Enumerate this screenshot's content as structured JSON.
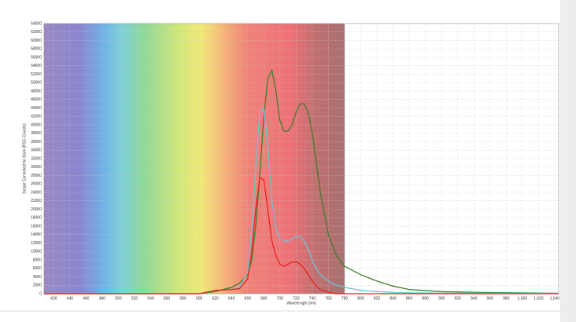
{
  "chart_data": {
    "type": "line",
    "x_label": "Wavelength [nm]",
    "y_label": "Scope Corrected for Dark (RSC-Counts)",
    "x": [
      408,
      600,
      620,
      640,
      650,
      660,
      665,
      670,
      675,
      680,
      685,
      690,
      695,
      700,
      705,
      710,
      715,
      720,
      725,
      730,
      735,
      740,
      745,
      750,
      760,
      770,
      780,
      800,
      820,
      840,
      860,
      900,
      950,
      1000,
      1045
    ],
    "series": [
      {
        "color": "#3f7d2c",
        "values": [
          0,
          0,
          500,
          1500,
          2500,
          4500,
          8000,
          16000,
          28000,
          42000,
          51000,
          53000,
          48000,
          41000,
          38500,
          38500,
          40000,
          43000,
          45000,
          45000,
          43000,
          38000,
          31000,
          24000,
          14000,
          9000,
          6500,
          4500,
          3000,
          1800,
          1000,
          500,
          300,
          200,
          100
        ]
      },
      {
        "color": "#6cc3d6",
        "values": [
          0,
          0,
          800,
          1000,
          1500,
          5000,
          15000,
          30000,
          43000,
          44000,
          35000,
          22000,
          15500,
          13000,
          12500,
          12500,
          13000,
          13500,
          13500,
          12500,
          10500,
          8000,
          6000,
          4500,
          3000,
          2000,
          1500,
          800,
          500,
          300,
          200,
          150,
          100,
          100,
          100
        ]
      },
      {
        "color": "#e8231f",
        "values": [
          0,
          0,
          800,
          1000,
          1200,
          3500,
          10000,
          20000,
          27500,
          27000,
          20000,
          12500,
          9000,
          7000,
          6500,
          7000,
          7500,
          7500,
          7000,
          6000,
          4500,
          3000,
          1800,
          1000,
          300,
          0,
          0,
          0,
          0,
          0,
          0,
          0,
          0,
          0,
          0
        ]
      }
    ],
    "xlim": [
      408,
      1045
    ],
    "ylim": [
      0,
      64000
    ],
    "xticks": [
      420,
      440,
      460,
      480,
      500,
      520,
      540,
      560,
      580,
      600,
      620,
      640,
      660,
      680,
      700,
      720,
      740,
      760,
      780,
      800,
      820,
      840,
      860,
      880,
      900,
      920,
      940,
      960,
      980,
      {
        "value": 1000,
        "label": "1,000"
      },
      {
        "value": 1020,
        "label": "1,020"
      },
      {
        "value": 1040,
        "label": "1,040"
      }
    ],
    "yticks": [
      0,
      2000,
      4000,
      6000,
      8000,
      10000,
      12000,
      14000,
      16000,
      18000,
      20000,
      22000,
      24000,
      26000,
      28000,
      30000,
      32000,
      34000,
      36000,
      38000,
      40000,
      42000,
      44000,
      46000,
      48000,
      50000,
      52000,
      54000,
      56000,
      58000,
      60000,
      62000,
      64000
    ],
    "grid": true
  }
}
